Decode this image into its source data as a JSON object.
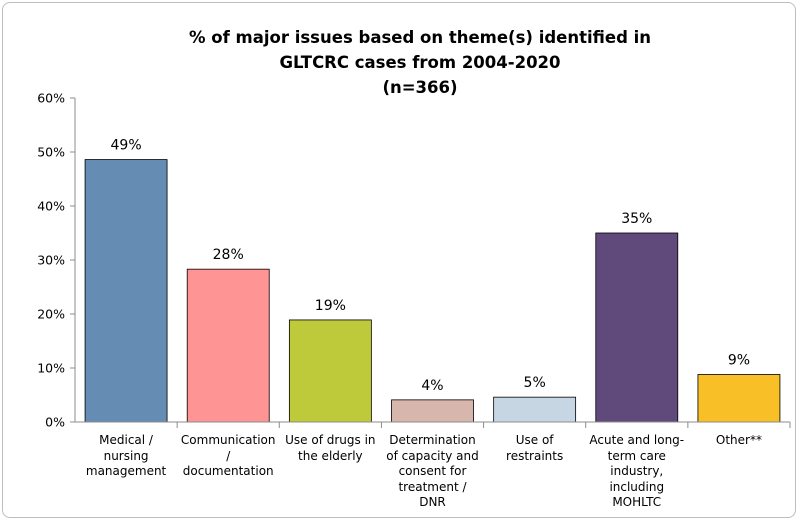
{
  "chart_data": {
    "type": "bar",
    "title_lines": [
      "% of major issues based on theme(s) identified in",
      "GLTCRC cases from 2004-2020",
      "(n=366)"
    ],
    "categories": [
      "Medical / nursing management",
      "Communication / documentation",
      "Use of drugs in the elderly",
      "Determination of capacity and consent for treatment / DNR",
      "Use of restraints",
      "Acute and long-term care industry, including MOHLTC",
      "Other**"
    ],
    "values": [
      48.6,
      28.3,
      18.9,
      4.1,
      4.6,
      35.0,
      8.8
    ],
    "data_labels": [
      "49%",
      "28%",
      "19%",
      "4%",
      "5%",
      "35%",
      "9%"
    ],
    "colors": [
      "#658cb2",
      "#ff9494",
      "#bfca3a",
      "#d7b6ac",
      "#c7d6e3",
      "#604a7b",
      "#f8c026"
    ],
    "yticks": [
      "0%",
      "10%",
      "20%",
      "30%",
      "40%",
      "50%",
      "60%"
    ],
    "ylim": [
      0,
      60
    ],
    "grid": false,
    "legend": "none"
  }
}
